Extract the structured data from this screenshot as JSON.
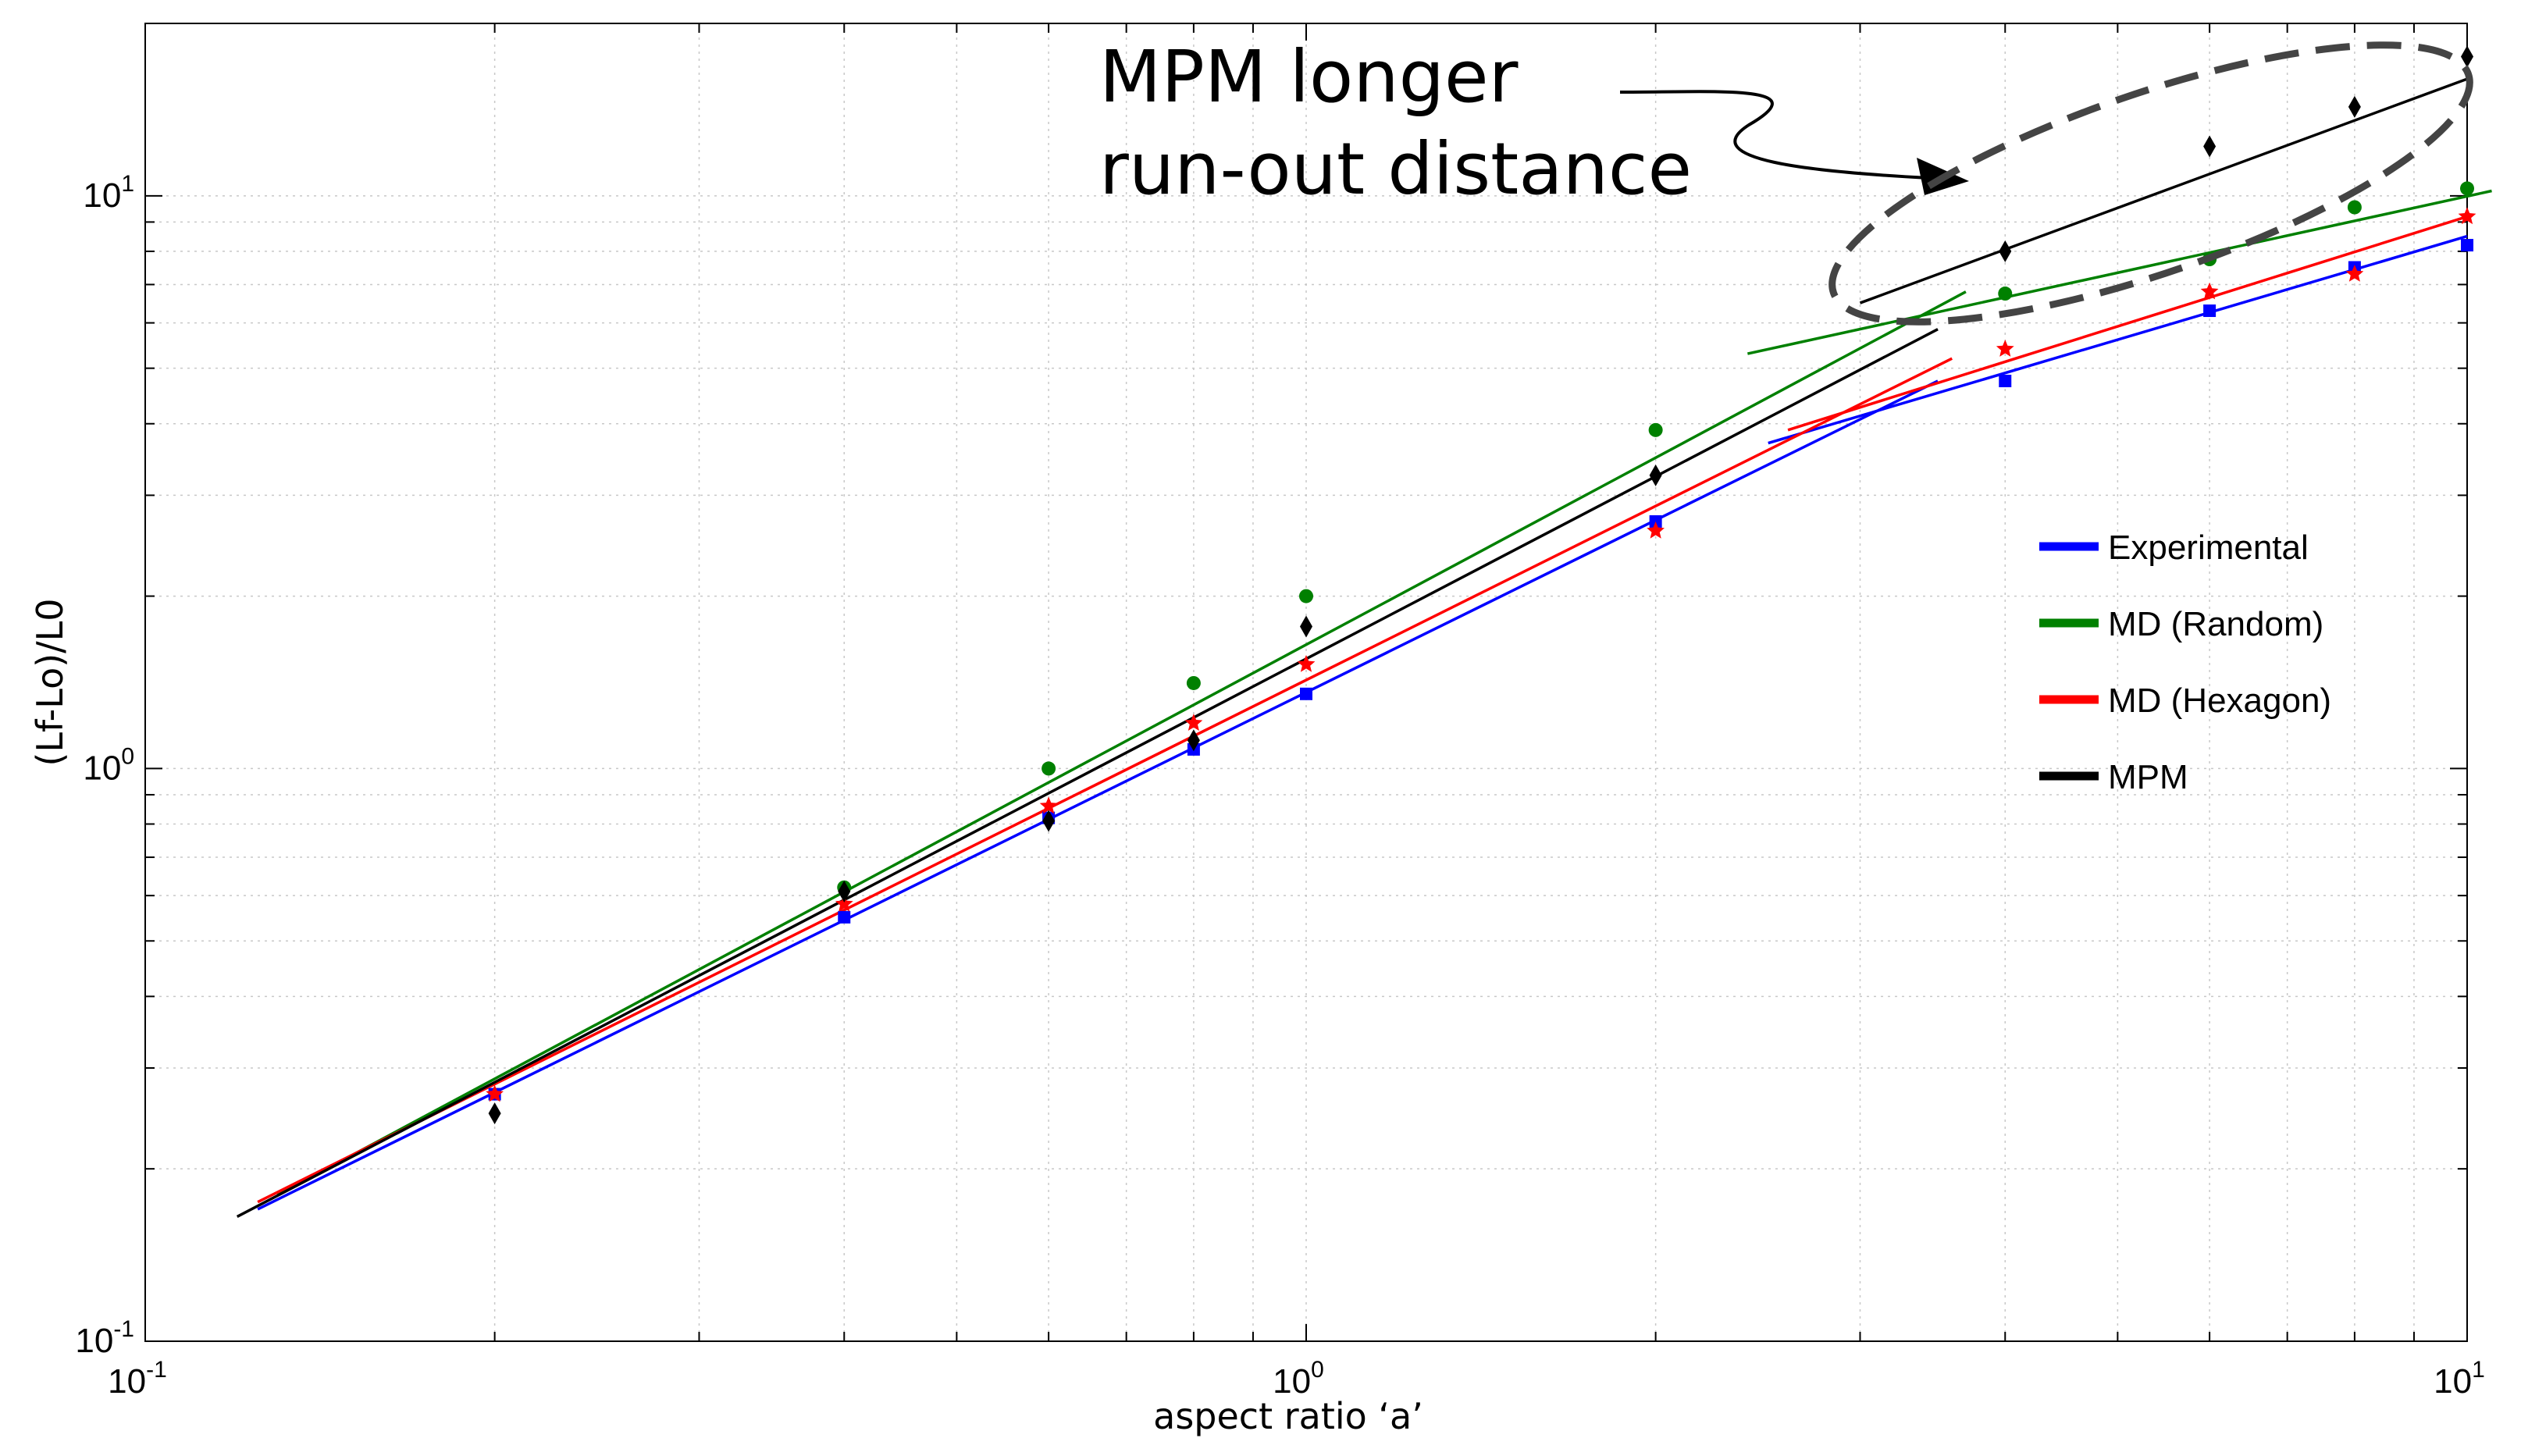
{
  "chart_data": {
    "type": "line",
    "title": "",
    "xlabel": "aspect ratio ‘a’",
    "ylabel": "(Lf-Lo)/L0",
    "xscale": "log",
    "yscale": "log",
    "xlim": [
      0.1,
      10
    ],
    "ylim": [
      0.1,
      20
    ],
    "grid": true,
    "legend_position": "right",
    "x_ticks": [
      {
        "value": 0.1,
        "base": "10",
        "exp": "-1"
      },
      {
        "value": 1,
        "base": "10",
        "exp": "0"
      },
      {
        "value": 10,
        "base": "10",
        "exp": "1"
      }
    ],
    "y_ticks": [
      {
        "value": 0.1,
        "base": "10",
        "exp": "-1"
      },
      {
        "value": 1,
        "base": "10",
        "exp": "0"
      },
      {
        "value": 10,
        "base": "10",
        "exp": "1"
      }
    ],
    "series": [
      {
        "name": "Experimental",
        "color": "#0000ff",
        "marker": "square",
        "points": {
          "x": [
            0.2,
            0.4,
            0.6,
            0.8,
            1.0,
            2.0,
            4.0,
            6.0,
            8.0,
            10.0
          ],
          "y": [
            0.27,
            0.55,
            0.82,
            1.08,
            1.35,
            2.7,
            4.75,
            6.3,
            7.5,
            8.2
          ]
        },
        "fits": [
          {
            "x": [
              0.125,
              3.5
            ],
            "y": [
              0.17,
              4.75
            ]
          },
          {
            "x": [
              2.5,
              10.0
            ],
            "y": [
              3.7,
              8.5
            ]
          }
        ]
      },
      {
        "name": "MD (Random)",
        "color": "#008000",
        "marker": "circle",
        "points": {
          "x": [
            0.4,
            0.6,
            0.8,
            1.0,
            2.0,
            4.0,
            6.0,
            8.0,
            10.0
          ],
          "y": [
            0.62,
            1.0,
            1.41,
            2.0,
            3.9,
            6.75,
            7.75,
            9.55,
            10.3
          ]
        },
        "fits": [
          {
            "x": [
              0.13,
              3.7
            ],
            "y": [
              0.18,
              6.8
            ]
          },
          {
            "x": [
              2.4,
              10.5
            ],
            "y": [
              5.3,
              10.2
            ]
          }
        ]
      },
      {
        "name": "MD (Hexagon)",
        "color": "#ff0000",
        "marker": "star",
        "points": {
          "x": [
            0.2,
            0.4,
            0.6,
            0.8,
            1.0,
            2.0,
            4.0,
            6.0,
            8.0,
            10.0
          ],
          "y": [
            0.27,
            0.58,
            0.86,
            1.2,
            1.52,
            2.6,
            5.4,
            6.8,
            7.3,
            9.2
          ]
        },
        "fits": [
          {
            "x": [
              0.125,
              3.6
            ],
            "y": [
              0.175,
              5.2
            ]
          },
          {
            "x": [
              2.6,
              10.0
            ],
            "y": [
              3.9,
              9.2
            ]
          }
        ]
      },
      {
        "name": "MPM",
        "color": "#000000",
        "marker": "diamond",
        "points": {
          "x": [
            0.2,
            0.4,
            0.6,
            0.8,
            1.0,
            2.0,
            4.0,
            6.0,
            8.0,
            10.0
          ],
          "y": [
            0.25,
            0.61,
            0.81,
            1.12,
            1.77,
            3.25,
            8.0,
            12.2,
            14.3,
            17.5
          ]
        },
        "fits": [
          {
            "x": [
              0.12,
              3.5
            ],
            "y": [
              0.165,
              5.85
            ]
          },
          {
            "x": [
              3.0,
              10.0
            ],
            "y": [
              6.5,
              16.0
            ]
          }
        ]
      }
    ],
    "annotations": [
      {
        "text_lines": [
          "MPM longer",
          "run-out distance"
        ],
        "target": {
          "x": 4.0,
          "y": 10.0
        }
      }
    ]
  }
}
